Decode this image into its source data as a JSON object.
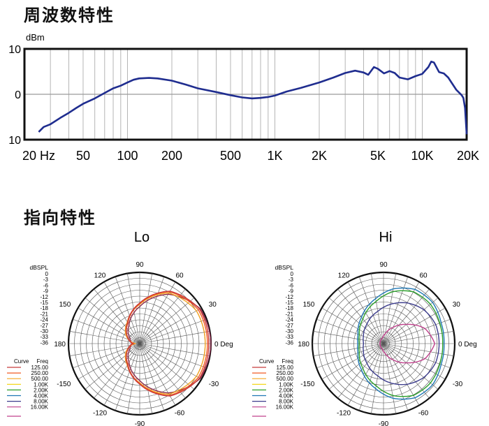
{
  "headings": {
    "frequency": "周波数特性",
    "directivity": "指向特性"
  },
  "chart_data": [
    {
      "type": "line",
      "ylabel": "dBm",
      "x_scale": "log",
      "xlim": [
        20,
        20000
      ],
      "ylim": [
        -10,
        10
      ],
      "y_tick_labels": [
        "10",
        "0",
        "10"
      ],
      "x_tick_labels": [
        {
          "v": 20,
          "t": "20  Hz"
        },
        {
          "v": 50,
          "t": "50"
        },
        {
          "v": 100,
          "t": "100"
        },
        {
          "v": 200,
          "t": "200"
        },
        {
          "v": 500,
          "t": "500"
        },
        {
          "v": 1000,
          "t": "1K"
        },
        {
          "v": 2000,
          "t": "2K"
        },
        {
          "v": 5000,
          "t": "5K"
        },
        {
          "v": 10000,
          "t": "10K"
        },
        {
          "v": 20000,
          "t": "20K"
        }
      ],
      "grid": true,
      "series": [
        {
          "color": "#1f2d8f",
          "points": [
            [
              25,
              -8.3
            ],
            [
              27,
              -7.2
            ],
            [
              30,
              -6.6
            ],
            [
              35,
              -5.2
            ],
            [
              40,
              -4.1
            ],
            [
              45,
              -3.0
            ],
            [
              50,
              -2.1
            ],
            [
              60,
              -0.9
            ],
            [
              70,
              0.3
            ],
            [
              80,
              1.3
            ],
            [
              90,
              1.9
            ],
            [
              100,
              2.6
            ],
            [
              110,
              3.2
            ],
            [
              120,
              3.5
            ],
            [
              140,
              3.6
            ],
            [
              160,
              3.5
            ],
            [
              200,
              3.0
            ],
            [
              250,
              2.1
            ],
            [
              300,
              1.3
            ],
            [
              400,
              0.5
            ],
            [
              500,
              -0.2
            ],
            [
              600,
              -0.7
            ],
            [
              700,
              -0.9
            ],
            [
              800,
              -0.8
            ],
            [
              900,
              -0.6
            ],
            [
              1000,
              -0.3
            ],
            [
              1200,
              0.6
            ],
            [
              1500,
              1.4
            ],
            [
              2000,
              2.6
            ],
            [
              2500,
              3.7
            ],
            [
              3000,
              4.7
            ],
            [
              3500,
              5.2
            ],
            [
              4000,
              4.8
            ],
            [
              4300,
              4.3
            ],
            [
              4700,
              6.0
            ],
            [
              5000,
              5.6
            ],
            [
              5500,
              4.6
            ],
            [
              6000,
              5.1
            ],
            [
              6500,
              4.7
            ],
            [
              7000,
              3.7
            ],
            [
              8000,
              3.3
            ],
            [
              9000,
              4.0
            ],
            [
              10000,
              4.5
            ],
            [
              11000,
              6.0
            ],
            [
              11500,
              7.2
            ],
            [
              12000,
              7.0
            ],
            [
              13000,
              4.9
            ],
            [
              14000,
              4.6
            ],
            [
              15000,
              3.7
            ],
            [
              16000,
              2.3
            ],
            [
              17000,
              1.0
            ],
            [
              18000,
              0.2
            ],
            [
              18500,
              -0.2
            ],
            [
              19000,
              -0.8
            ],
            [
              19500,
              -3.0
            ],
            [
              20000,
              -8.8
            ]
          ]
        }
      ]
    },
    {
      "type": "polar",
      "title": "Lo",
      "r_label": "dBSPL",
      "r_ticks": [
        "0",
        "-3",
        "-6",
        "-9",
        "-12",
        "-15",
        "-18",
        "-21",
        "-24",
        "-27",
        "-30",
        "-33",
        "-36"
      ],
      "angle_labels": [
        "90",
        "60",
        "30",
        "0 Deg",
        "-30",
        "-60",
        "-90",
        "-120",
        "-150",
        "180",
        "150",
        "120"
      ],
      "legend_header": [
        "Curve",
        "Freq"
      ],
      "legend": [
        {
          "freq": "125.00",
          "color": "#c83a3a"
        },
        {
          "freq": "250.00",
          "color": "#f05a24"
        },
        {
          "freq": "500.00",
          "color": "#f5a623"
        },
        {
          "freq": "1.00K",
          "color": "#f2d200"
        },
        {
          "freq": "2.00K",
          "color": "#2ca02c"
        },
        {
          "freq": "4.00K",
          "color": "#1f77b4"
        },
        {
          "freq": "8.00K",
          "color": "#3c3c8c"
        },
        {
          "freq": "16.00K",
          "color": "#c0408c"
        }
      ],
      "curves": [
        {
          "color": "#8b2a4a",
          "pts": [
            [
              0,
              1.0
            ],
            [
              30,
              0.98
            ],
            [
              60,
              0.8
            ],
            [
              90,
              0.52
            ],
            [
              120,
              0.3
            ],
            [
              150,
              0.16
            ],
            [
              165,
              0.13
            ],
            [
              180,
              0.1
            ]
          ]
        },
        {
          "color": "#f5a623",
          "pts": [
            [
              0,
              0.92
            ],
            [
              30,
              0.92
            ],
            [
              60,
              0.82
            ],
            [
              90,
              0.55
            ],
            [
              120,
              0.35
            ],
            [
              150,
              0.22
            ],
            [
              165,
              0.14
            ],
            [
              180,
              0.06
            ]
          ]
        },
        {
          "color": "#f05a24",
          "pts": [
            [
              0,
              0.95
            ],
            [
              30,
              0.95
            ],
            [
              60,
              0.84
            ],
            [
              90,
              0.56
            ],
            [
              120,
              0.33
            ],
            [
              150,
              0.2
            ],
            [
              165,
              0.14
            ],
            [
              180,
              0.08
            ]
          ]
        },
        {
          "color": "#c83a3a",
          "pts": [
            [
              0,
              0.97
            ],
            [
              30,
              0.97
            ],
            [
              60,
              0.85
            ],
            [
              90,
              0.57
            ],
            [
              120,
              0.34
            ],
            [
              150,
              0.2
            ],
            [
              165,
              0.15
            ],
            [
              180,
              0.1
            ]
          ]
        }
      ]
    },
    {
      "type": "polar",
      "title": "Hi",
      "r_label": "dBSPL",
      "r_ticks": [
        "0",
        "-3",
        "-6",
        "-9",
        "-12",
        "-15",
        "-18",
        "-21",
        "-24",
        "-27",
        "-30",
        "-33",
        "-36"
      ],
      "angle_labels": [
        "90",
        "60",
        "30",
        "0 Deg",
        "-30",
        "-60",
        "-90",
        "-120",
        "-150",
        "180",
        "150",
        "120"
      ],
      "legend_header": [
        "Curve",
        "Freq"
      ],
      "legend": [
        {
          "freq": "125.00",
          "color": "#c83a3a"
        },
        {
          "freq": "250.00",
          "color": "#f05a24"
        },
        {
          "freq": "500.00",
          "color": "#f5a623"
        },
        {
          "freq": "1.00K",
          "color": "#f2d200"
        },
        {
          "freq": "2.00K",
          "color": "#2ca02c"
        },
        {
          "freq": "4.00K",
          "color": "#1f77b4"
        },
        {
          "freq": "8.00K",
          "color": "#3c3c8c"
        },
        {
          "freq": "16.00K",
          "color": "#c0408c"
        }
      ],
      "curves": [
        {
          "color": "#2ca02c",
          "pts": [
            [
              0,
              0.83
            ],
            [
              20,
              0.84
            ],
            [
              40,
              0.86
            ],
            [
              60,
              0.84
            ],
            [
              80,
              0.74
            ],
            [
              100,
              0.6
            ],
            [
              130,
              0.45
            ],
            [
              160,
              0.36
            ],
            [
              180,
              0.34
            ]
          ]
        },
        {
          "color": "#1f77b4",
          "pts": [
            [
              0,
              0.85
            ],
            [
              20,
              0.86
            ],
            [
              40,
              0.9
            ],
            [
              60,
              0.88
            ],
            [
              80,
              0.78
            ],
            [
              100,
              0.64
            ],
            [
              130,
              0.48
            ],
            [
              160,
              0.38
            ],
            [
              180,
              0.36
            ]
          ]
        },
        {
          "color": "#3c3c8c",
          "pts": [
            [
              0,
              0.78
            ],
            [
              20,
              0.78
            ],
            [
              40,
              0.74
            ],
            [
              60,
              0.66
            ],
            [
              80,
              0.56
            ],
            [
              100,
              0.46
            ],
            [
              130,
              0.36
            ],
            [
              160,
              0.3
            ],
            [
              180,
              0.28
            ]
          ]
        },
        {
          "color": "#c0408c",
          "pts": [
            [
              0,
              0.72
            ],
            [
              20,
              0.62
            ],
            [
              40,
              0.42
            ],
            [
              60,
              0.26
            ],
            [
              80,
              0.14
            ],
            [
              100,
              0.08
            ],
            [
              130,
              0.06
            ],
            [
              160,
              0.05
            ],
            [
              180,
              0.05
            ]
          ]
        }
      ]
    }
  ]
}
